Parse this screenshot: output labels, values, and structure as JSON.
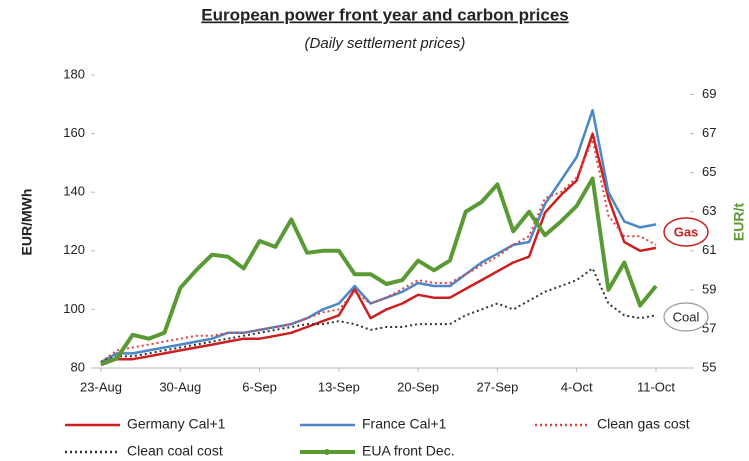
{
  "chart_data": {
    "type": "line",
    "title": "European power front year and carbon prices",
    "subtitle": "(Daily settlement prices)",
    "y_label": "EUR/MWh",
    "y2_label": "EUR/t",
    "categories": [
      "23-Aug",
      null,
      null,
      null,
      null,
      "30-Aug",
      null,
      null,
      null,
      null,
      "6-Sep",
      null,
      null,
      null,
      null,
      "13-Sep",
      null,
      null,
      null,
      null,
      "20-Sep",
      null,
      null,
      null,
      null,
      "27-Sep",
      null,
      null,
      null,
      null,
      "4-Oct",
      null,
      null,
      null,
      null,
      "11-Oct"
    ],
    "ylim": [
      80,
      180
    ],
    "yticks": [
      80,
      100,
      120,
      140,
      160,
      180
    ],
    "y2lim": [
      55,
      70
    ],
    "y2ticks": [
      55,
      57,
      59,
      61,
      63,
      65,
      67,
      69
    ],
    "series": [
      {
        "name": "Germany Cal+1",
        "color": "#cc1f1f",
        "style": "solid",
        "values": [
          81,
          83,
          83,
          84,
          85,
          86,
          87,
          88,
          89,
          90,
          90,
          91,
          92,
          94,
          96,
          98,
          107,
          97,
          100,
          102,
          105,
          104,
          104,
          107,
          110,
          113,
          116,
          118,
          133,
          139,
          144,
          160,
          138,
          123,
          120,
          121
        ]
      },
      {
        "name": "France Cal+1",
        "color": "#4a86c8",
        "style": "solid",
        "values": [
          82,
          85,
          85,
          86,
          87,
          88,
          89,
          90,
          92,
          92,
          93,
          94,
          95,
          97,
          100,
          102,
          108,
          102,
          104,
          106,
          109,
          108,
          108,
          112,
          116,
          119,
          122,
          123,
          136,
          144,
          152,
          168,
          140,
          130,
          128,
          129
        ]
      },
      {
        "name": "Clean gas cost",
        "color": "#e0413a",
        "style": "dotted",
        "values": [
          82,
          86,
          87,
          88,
          89,
          90,
          91,
          91,
          92,
          92,
          93,
          94,
          95,
          97,
          99,
          100,
          106,
          102,
          104,
          107,
          110,
          109,
          109,
          112,
          115,
          118,
          122,
          125,
          138,
          140,
          145,
          158,
          132,
          125,
          125,
          122
        ]
      },
      {
        "name": "Clean coal cost",
        "color": "#333333",
        "style": "dotted",
        "values": [
          82,
          84,
          84,
          85,
          86,
          87,
          88,
          89,
          90,
          91,
          92,
          93,
          94,
          95,
          95,
          96,
          95,
          93,
          94,
          94,
          95,
          95,
          95,
          98,
          100,
          102,
          100,
          103,
          106,
          108,
          110,
          114,
          102,
          98,
          97,
          98
        ]
      },
      {
        "name": "EUA front Dec.",
        "color": "#5a9a35",
        "style": "solid",
        "axis": "y2",
        "values": [
          55.2,
          55.5,
          56.7,
          56.5,
          56.8,
          59.1,
          60.0,
          60.8,
          60.7,
          60.1,
          61.5,
          61.2,
          62.6,
          60.9,
          61.0,
          61.0,
          59.8,
          59.8,
          59.3,
          59.5,
          60.5,
          60.0,
          60.5,
          63.0,
          63.5,
          64.4,
          62.0,
          63.0,
          61.8,
          62.5,
          63.3,
          64.7,
          59.0,
          60.4,
          58.2,
          59.2
        ]
      }
    ],
    "annotations": [
      "Gas",
      "Coal"
    ]
  }
}
